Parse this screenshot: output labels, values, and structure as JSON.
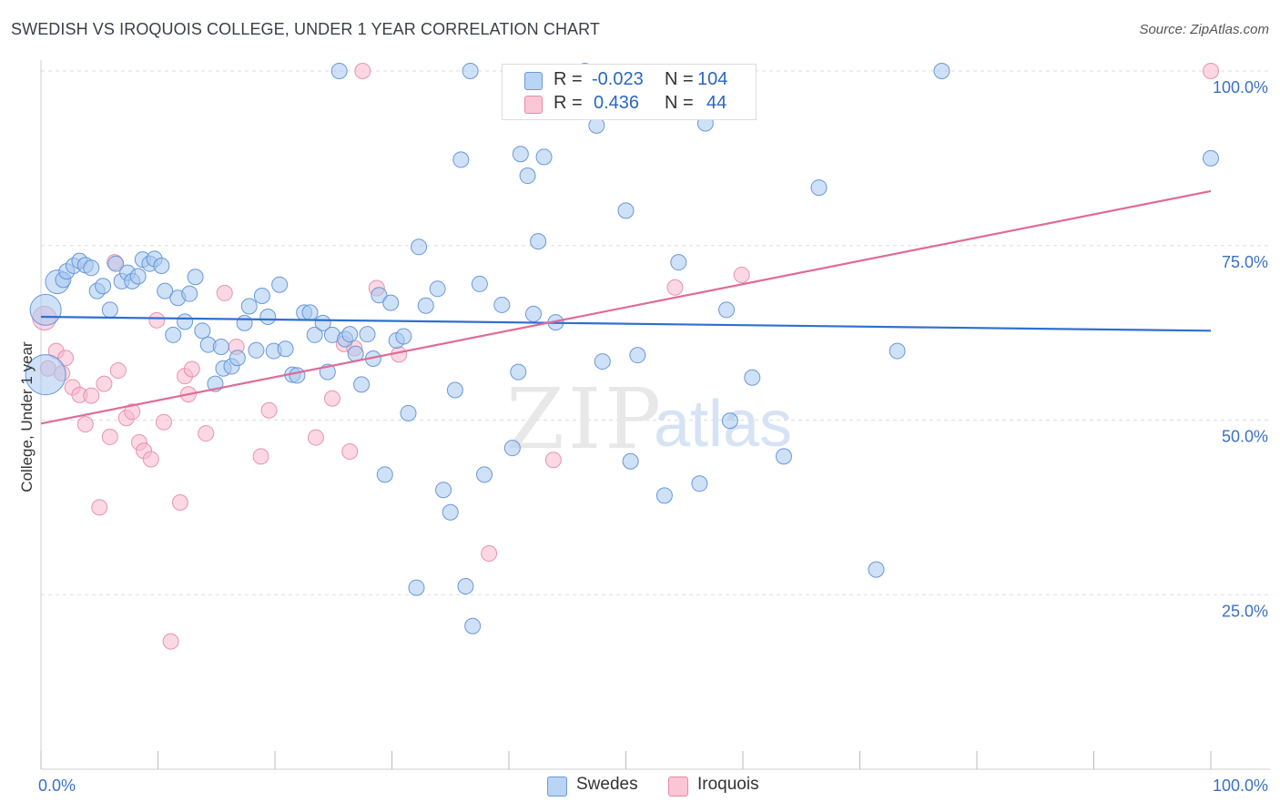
{
  "header": {
    "title": "SWEDISH VS IROQUOIS COLLEGE, UNDER 1 YEAR CORRELATION CHART",
    "source": "Source: ZipAtlas.com"
  },
  "stats_legend": {
    "rows": [
      {
        "r_label": "R =",
        "r_value": "-0.023",
        "n_label": "N =",
        "n_value": "104"
      },
      {
        "r_label": "R =",
        "r_value": "0.436",
        "n_label": "N =",
        "n_value": "44"
      }
    ]
  },
  "colors": {
    "swedes_fill": "#a8c8f0",
    "swedes_stroke": "#5b8fd6",
    "swedes_line": "#2f6fd0",
    "iroquois_fill": "#f8b8cc",
    "iroquois_stroke": "#e88aa8",
    "iroquois_line": "#e06a96",
    "tick_text": "#3a70c8",
    "grid": "#dddddd"
  },
  "watermark": {
    "zip": "ZIP",
    "atlas": "atlas"
  },
  "chart_data": {
    "type": "scatter",
    "title": "SWEDISH VS IROQUOIS COLLEGE, UNDER 1 YEAR CORRELATION CHART",
    "xlabel": "",
    "ylabel": "College, Under 1 year",
    "xlim": [
      0,
      100
    ],
    "ylim": [
      0,
      102
    ],
    "x_tick_labels": [
      {
        "value": 0,
        "label": "0.0%"
      },
      {
        "value": 100,
        "label": "100.0%"
      }
    ],
    "y_tick_labels": [
      {
        "value": 100,
        "label": "100.0%"
      },
      {
        "value": 75,
        "label": "75.0%"
      },
      {
        "value": 50,
        "label": "50.0%"
      },
      {
        "value": 25,
        "label": "25.0%"
      }
    ],
    "grid": true,
    "legend": [
      "Swedes",
      "Iroquois"
    ],
    "series": [
      {
        "name": "Swedes",
        "R": -0.023,
        "N": 104,
        "trend": {
          "x": [
            0,
            100
          ],
          "y": [
            64.8,
            62.8
          ]
        },
        "points": [
          {
            "x": 0.4,
            "y": 65.8,
            "s": 3
          },
          {
            "x": 0.4,
            "y": 56.5,
            "s": 4
          },
          {
            "x": 1.4,
            "y": 69.8,
            "s": 2
          },
          {
            "x": 1.9,
            "y": 70.1,
            "s": 1
          },
          {
            "x": 2.2,
            "y": 71.3,
            "s": 1
          },
          {
            "x": 2.8,
            "y": 72.1,
            "s": 1
          },
          {
            "x": 3.3,
            "y": 72.8,
            "s": 1
          },
          {
            "x": 3.8,
            "y": 72.2,
            "s": 1
          },
          {
            "x": 4.3,
            "y": 71.8,
            "s": 1
          },
          {
            "x": 4.8,
            "y": 68.5,
            "s": 1
          },
          {
            "x": 5.3,
            "y": 69.2,
            "s": 1
          },
          {
            "x": 5.9,
            "y": 65.8,
            "s": 1
          },
          {
            "x": 6.4,
            "y": 72.4,
            "s": 1
          },
          {
            "x": 6.9,
            "y": 69.9,
            "s": 1
          },
          {
            "x": 7.4,
            "y": 71.1,
            "s": 1
          },
          {
            "x": 7.8,
            "y": 69.9,
            "s": 1
          },
          {
            "x": 8.3,
            "y": 70.6,
            "s": 1
          },
          {
            "x": 8.7,
            "y": 73.0,
            "s": 1
          },
          {
            "x": 9.3,
            "y": 72.4,
            "s": 1
          },
          {
            "x": 9.7,
            "y": 73.1,
            "s": 1
          },
          {
            "x": 10.3,
            "y": 72.1,
            "s": 1
          },
          {
            "x": 10.6,
            "y": 68.5,
            "s": 1
          },
          {
            "x": 11.3,
            "y": 62.2,
            "s": 1
          },
          {
            "x": 11.7,
            "y": 67.5,
            "s": 1
          },
          {
            "x": 12.3,
            "y": 64.1,
            "s": 1
          },
          {
            "x": 12.7,
            "y": 68.1,
            "s": 1
          },
          {
            "x": 13.2,
            "y": 70.5,
            "s": 1
          },
          {
            "x": 13.8,
            "y": 62.8,
            "s": 1
          },
          {
            "x": 14.3,
            "y": 60.8,
            "s": 1
          },
          {
            "x": 14.9,
            "y": 55.2,
            "s": 1
          },
          {
            "x": 15.4,
            "y": 60.5,
            "s": 1
          },
          {
            "x": 15.6,
            "y": 57.4,
            "s": 1
          },
          {
            "x": 16.3,
            "y": 57.7,
            "s": 1
          },
          {
            "x": 16.8,
            "y": 58.9,
            "s": 1
          },
          {
            "x": 17.4,
            "y": 63.9,
            "s": 1
          },
          {
            "x": 17.8,
            "y": 66.3,
            "s": 1
          },
          {
            "x": 18.4,
            "y": 60.0,
            "s": 1
          },
          {
            "x": 18.9,
            "y": 67.8,
            "s": 1
          },
          {
            "x": 19.4,
            "y": 64.8,
            "s": 1
          },
          {
            "x": 19.9,
            "y": 59.9,
            "s": 1
          },
          {
            "x": 20.4,
            "y": 69.4,
            "s": 1
          },
          {
            "x": 20.9,
            "y": 60.2,
            "s": 1
          },
          {
            "x": 21.5,
            "y": 56.5,
            "s": 1
          },
          {
            "x": 21.9,
            "y": 56.4,
            "s": 1
          },
          {
            "x": 22.5,
            "y": 65.4,
            "s": 1
          },
          {
            "x": 23.0,
            "y": 65.4,
            "s": 1
          },
          {
            "x": 23.4,
            "y": 62.2,
            "s": 1
          },
          {
            "x": 24.1,
            "y": 63.9,
            "s": 1
          },
          {
            "x": 24.5,
            "y": 56.9,
            "s": 1
          },
          {
            "x": 24.9,
            "y": 62.2,
            "s": 1
          },
          {
            "x": 25.5,
            "y": 100.0,
            "s": 1
          },
          {
            "x": 26.0,
            "y": 61.6,
            "s": 1
          },
          {
            "x": 26.4,
            "y": 62.3,
            "s": 1
          },
          {
            "x": 26.9,
            "y": 59.5,
            "s": 1
          },
          {
            "x": 27.4,
            "y": 55.1,
            "s": 1
          },
          {
            "x": 27.9,
            "y": 62.3,
            "s": 1
          },
          {
            "x": 28.4,
            "y": 58.8,
            "s": 1
          },
          {
            "x": 28.9,
            "y": 67.9,
            "s": 1
          },
          {
            "x": 29.9,
            "y": 66.8,
            "s": 1
          },
          {
            "x": 30.4,
            "y": 61.4,
            "s": 1
          },
          {
            "x": 31.0,
            "y": 62.0,
            "s": 1
          },
          {
            "x": 29.4,
            "y": 42.2,
            "s": 1
          },
          {
            "x": 31.4,
            "y": 51.0,
            "s": 1
          },
          {
            "x": 32.3,
            "y": 74.8,
            "s": 1
          },
          {
            "x": 32.9,
            "y": 66.4,
            "s": 1
          },
          {
            "x": 32.1,
            "y": 26.0,
            "s": 1
          },
          {
            "x": 33.9,
            "y": 68.8,
            "s": 1
          },
          {
            "x": 34.4,
            "y": 40.0,
            "s": 1
          },
          {
            "x": 35.0,
            "y": 36.8,
            "s": 1
          },
          {
            "x": 35.4,
            "y": 54.3,
            "s": 1
          },
          {
            "x": 35.9,
            "y": 87.3,
            "s": 1
          },
          {
            "x": 36.3,
            "y": 26.2,
            "s": 1
          },
          {
            "x": 36.7,
            "y": 100.0,
            "s": 1
          },
          {
            "x": 36.9,
            "y": 20.5,
            "s": 1
          },
          {
            "x": 37.5,
            "y": 69.5,
            "s": 1
          },
          {
            "x": 37.9,
            "y": 42.2,
            "s": 1
          },
          {
            "x": 39.4,
            "y": 66.5,
            "s": 1
          },
          {
            "x": 40.3,
            "y": 46.0,
            "s": 1
          },
          {
            "x": 40.8,
            "y": 56.9,
            "s": 1
          },
          {
            "x": 41.0,
            "y": 88.1,
            "s": 1
          },
          {
            "x": 41.6,
            "y": 85.0,
            "s": 1
          },
          {
            "x": 42.1,
            "y": 65.2,
            "s": 1
          },
          {
            "x": 42.5,
            "y": 75.6,
            "s": 1
          },
          {
            "x": 43.0,
            "y": 87.7,
            "s": 1
          },
          {
            "x": 44.0,
            "y": 64.0,
            "s": 1
          },
          {
            "x": 46.5,
            "y": 100.0,
            "s": 1
          },
          {
            "x": 47.5,
            "y": 92.2,
            "s": 1
          },
          {
            "x": 48.0,
            "y": 58.4,
            "s": 1
          },
          {
            "x": 50.0,
            "y": 80.0,
            "s": 1
          },
          {
            "x": 50.4,
            "y": 44.1,
            "s": 1
          },
          {
            "x": 51.0,
            "y": 59.3,
            "s": 1
          },
          {
            "x": 53.3,
            "y": 39.2,
            "s": 1
          },
          {
            "x": 54.5,
            "y": 72.6,
            "s": 1
          },
          {
            "x": 56.3,
            "y": 40.9,
            "s": 1
          },
          {
            "x": 56.8,
            "y": 92.5,
            "s": 1
          },
          {
            "x": 58.6,
            "y": 65.8,
            "s": 1
          },
          {
            "x": 58.9,
            "y": 49.9,
            "s": 1
          },
          {
            "x": 60.8,
            "y": 56.1,
            "s": 1
          },
          {
            "x": 63.5,
            "y": 44.8,
            "s": 1
          },
          {
            "x": 66.5,
            "y": 83.3,
            "s": 1
          },
          {
            "x": 71.4,
            "y": 28.6,
            "s": 1
          },
          {
            "x": 73.2,
            "y": 59.9,
            "s": 1
          },
          {
            "x": 77.0,
            "y": 100.0,
            "s": 1
          },
          {
            "x": 100.0,
            "y": 87.5,
            "s": 1
          }
        ]
      },
      {
        "name": "Iroquois",
        "R": 0.436,
        "N": 44,
        "trend": {
          "x": [
            0,
            100
          ],
          "y": [
            49.5,
            82.8
          ]
        },
        "points": [
          {
            "x": 0.3,
            "y": 64.6,
            "s": 2
          },
          {
            "x": 0.6,
            "y": 57.4,
            "s": 1
          },
          {
            "x": 1.3,
            "y": 59.9,
            "s": 1
          },
          {
            "x": 1.8,
            "y": 56.7,
            "s": 1
          },
          {
            "x": 2.1,
            "y": 58.9,
            "s": 1
          },
          {
            "x": 2.7,
            "y": 54.7,
            "s": 1
          },
          {
            "x": 3.3,
            "y": 53.6,
            "s": 1
          },
          {
            "x": 3.8,
            "y": 49.4,
            "s": 1
          },
          {
            "x": 4.3,
            "y": 53.5,
            "s": 1
          },
          {
            "x": 5.0,
            "y": 37.5,
            "s": 1
          },
          {
            "x": 5.4,
            "y": 55.2,
            "s": 1
          },
          {
            "x": 5.9,
            "y": 47.6,
            "s": 1
          },
          {
            "x": 6.3,
            "y": 72.6,
            "s": 1
          },
          {
            "x": 6.6,
            "y": 57.1,
            "s": 1
          },
          {
            "x": 7.3,
            "y": 50.3,
            "s": 1
          },
          {
            "x": 7.8,
            "y": 51.2,
            "s": 1
          },
          {
            "x": 8.4,
            "y": 46.8,
            "s": 1
          },
          {
            "x": 8.8,
            "y": 45.6,
            "s": 1
          },
          {
            "x": 9.4,
            "y": 44.4,
            "s": 1
          },
          {
            "x": 9.9,
            "y": 64.3,
            "s": 1
          },
          {
            "x": 10.5,
            "y": 49.7,
            "s": 1
          },
          {
            "x": 11.1,
            "y": 18.3,
            "s": 1
          },
          {
            "x": 11.9,
            "y": 38.2,
            "s": 1
          },
          {
            "x": 12.3,
            "y": 56.3,
            "s": 1
          },
          {
            "x": 12.6,
            "y": 53.7,
            "s": 1
          },
          {
            "x": 12.9,
            "y": 57.3,
            "s": 1
          },
          {
            "x": 14.1,
            "y": 48.1,
            "s": 1
          },
          {
            "x": 15.7,
            "y": 68.2,
            "s": 1
          },
          {
            "x": 16.7,
            "y": 60.5,
            "s": 1
          },
          {
            "x": 18.8,
            "y": 44.8,
            "s": 1
          },
          {
            "x": 19.5,
            "y": 51.4,
            "s": 1
          },
          {
            "x": 23.5,
            "y": 47.5,
            "s": 1
          },
          {
            "x": 24.9,
            "y": 53.1,
            "s": 1
          },
          {
            "x": 25.9,
            "y": 60.9,
            "s": 1
          },
          {
            "x": 26.4,
            "y": 45.5,
            "s": 1
          },
          {
            "x": 26.8,
            "y": 60.3,
            "s": 1
          },
          {
            "x": 27.5,
            "y": 100.0,
            "s": 1
          },
          {
            "x": 28.7,
            "y": 68.9,
            "s": 1
          },
          {
            "x": 30.6,
            "y": 59.4,
            "s": 1
          },
          {
            "x": 38.3,
            "y": 30.9,
            "s": 1
          },
          {
            "x": 43.8,
            "y": 44.3,
            "s": 1
          },
          {
            "x": 54.2,
            "y": 69.0,
            "s": 1
          },
          {
            "x": 59.9,
            "y": 70.8,
            "s": 1
          },
          {
            "x": 100.0,
            "y": 100.0,
            "s": 1
          }
        ]
      }
    ]
  },
  "bottom_legend": {
    "swedes": "Swedes",
    "iroquois": "Iroquois"
  }
}
